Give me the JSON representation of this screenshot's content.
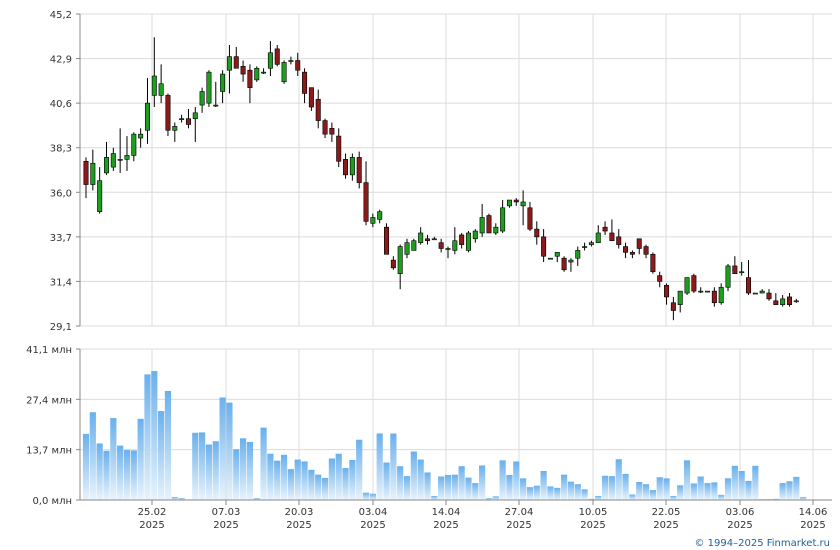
{
  "chart_data": [
    {
      "type": "candlestick",
      "ylim": [
        29.1,
        45.2
      ],
      "y_ticks": [
        "45,2",
        "42,9",
        "40,6",
        "38,3",
        "36,0",
        "33,7",
        "31,4",
        "29,1"
      ],
      "y_tick_values": [
        45.2,
        42.9,
        40.6,
        38.3,
        36.0,
        33.7,
        31.4,
        29.1
      ],
      "grid": true,
      "candles": [
        [
          37.6,
          36.4,
          37.8,
          35.7
        ],
        [
          36.4,
          37.5,
          38.2,
          36.1
        ],
        [
          35.0,
          36.6,
          37.3,
          34.9
        ],
        [
          37.0,
          37.8,
          38.6,
          36.9
        ],
        [
          37.3,
          38.0,
          38.3,
          37.1
        ],
        [
          37.7,
          37.7,
          39.3,
          37.0
        ],
        [
          37.7,
          37.9,
          38.9,
          37.1
        ],
        [
          37.9,
          39.0,
          39.1,
          37.6
        ],
        [
          38.8,
          39.0,
          39.3,
          38.3
        ],
        [
          39.2,
          40.6,
          41.9,
          38.5
        ],
        [
          41.0,
          42.0,
          44.0,
          40.4
        ],
        [
          41.0,
          41.6,
          42.6,
          40.6
        ],
        [
          41.0,
          39.2,
          41.1,
          38.9
        ],
        [
          39.2,
          39.4,
          39.6,
          38.6
        ],
        [
          39.8,
          39.8,
          40.0,
          39.6
        ],
        [
          39.8,
          39.5,
          40.3,
          39.3
        ],
        [
          39.8,
          40.1,
          40.4,
          38.6
        ],
        [
          40.5,
          41.2,
          41.4,
          40.1
        ],
        [
          40.6,
          42.2,
          42.3,
          40.4
        ],
        [
          40.5,
          40.5,
          41.7,
          40.4
        ],
        [
          41.2,
          42.1,
          42.3,
          40.6
        ],
        [
          42.3,
          43.0,
          43.6,
          41.1
        ],
        [
          43.0,
          42.4,
          43.5,
          42.4
        ],
        [
          42.5,
          42.1,
          42.8,
          41.7
        ],
        [
          42.3,
          41.4,
          42.6,
          40.6
        ],
        [
          41.8,
          42.4,
          42.5,
          41.7
        ],
        [
          42.2,
          42.2,
          42.4,
          42.1
        ],
        [
          42.4,
          43.2,
          43.8,
          42.0
        ],
        [
          43.4,
          42.6,
          43.6,
          42.5
        ],
        [
          41.7,
          42.7,
          42.8,
          41.6
        ],
        [
          42.8,
          42.8,
          43.0,
          42.6
        ],
        [
          42.8,
          42.3,
          43.2,
          42.0
        ],
        [
          42.2,
          41.1,
          42.4,
          40.6
        ],
        [
          41.4,
          40.4,
          41.4,
          40.2
        ],
        [
          40.8,
          39.7,
          41.3,
          39.3
        ],
        [
          39.7,
          39.0,
          39.8,
          38.8
        ],
        [
          39.3,
          39.0,
          39.6,
          38.6
        ],
        [
          38.9,
          37.6,
          39.3,
          37.3
        ],
        [
          37.7,
          36.9,
          38.0,
          36.7
        ],
        [
          36.9,
          37.8,
          38.0,
          36.6
        ],
        [
          37.8,
          36.5,
          38.1,
          36.2
        ],
        [
          36.5,
          34.5,
          37.6,
          34.3
        ],
        [
          34.4,
          34.7,
          34.9,
          34.2
        ],
        [
          34.6,
          35.0,
          35.1,
          34.4
        ],
        [
          34.2,
          32.8,
          34.4,
          32.8
        ],
        [
          32.5,
          32.1,
          32.7,
          32.0
        ],
        [
          31.8,
          33.2,
          33.3,
          31.0
        ],
        [
          32.8,
          33.4,
          33.6,
          32.6
        ],
        [
          33.0,
          33.5,
          33.6,
          33.0
        ],
        [
          33.4,
          33.9,
          34.2,
          33.3
        ],
        [
          33.6,
          33.5,
          33.8,
          33.3
        ],
        [
          33.6,
          33.6,
          33.7,
          33.6
        ],
        [
          33.4,
          33.1,
          33.6,
          32.9
        ],
        [
          33.1,
          33.1,
          33.2,
          32.6
        ],
        [
          33.0,
          33.5,
          34.2,
          32.8
        ],
        [
          33.8,
          33.3,
          33.9,
          33.1
        ],
        [
          33.0,
          33.9,
          34.0,
          32.9
        ],
        [
          33.6,
          34.0,
          34.1,
          33.4
        ],
        [
          33.9,
          34.7,
          35.4,
          33.7
        ],
        [
          34.8,
          33.9,
          34.9,
          33.9
        ],
        [
          33.9,
          34.2,
          34.4,
          33.8
        ],
        [
          34.0,
          35.2,
          35.6,
          33.9
        ],
        [
          35.3,
          35.6,
          35.6,
          35.2
        ],
        [
          35.6,
          35.5,
          35.7,
          35.3
        ],
        [
          35.3,
          35.5,
          36.1,
          34.3
        ],
        [
          35.2,
          34.1,
          35.5,
          34.0
        ],
        [
          34.1,
          33.7,
          34.5,
          33.3
        ],
        [
          33.7,
          32.7,
          34.1,
          32.4
        ],
        [
          32.6,
          32.6,
          32.6,
          32.6
        ],
        [
          32.7,
          32.9,
          32.9,
          32.4
        ],
        [
          32.6,
          32.0,
          32.7,
          31.9
        ],
        [
          32.4,
          32.5,
          32.6,
          31.9
        ],
        [
          32.6,
          33.0,
          33.2,
          32.2
        ],
        [
          33.2,
          33.2,
          33.4,
          33.0
        ],
        [
          33.3,
          33.4,
          33.5,
          33.2
        ],
        [
          33.4,
          33.9,
          34.3,
          33.4
        ],
        [
          34.2,
          34.0,
          34.5,
          33.8
        ],
        [
          33.9,
          33.5,
          34.6,
          33.5
        ],
        [
          33.7,
          33.3,
          34.1,
          33.1
        ],
        [
          33.2,
          32.9,
          33.4,
          32.6
        ],
        [
          32.9,
          32.8,
          33.0,
          32.6
        ],
        [
          33.6,
          33.1,
          33.6,
          32.8
        ],
        [
          33.2,
          32.8,
          33.3,
          32.6
        ],
        [
          32.8,
          31.9,
          32.9,
          31.8
        ],
        [
          31.7,
          31.4,
          31.9,
          31.1
        ],
        [
          31.2,
          30.6,
          31.3,
          30.2
        ],
        [
          30.3,
          29.9,
          30.6,
          29.4
        ],
        [
          30.2,
          30.9,
          30.9,
          29.8
        ],
        [
          30.8,
          31.6,
          31.6,
          30.7
        ],
        [
          31.7,
          30.9,
          31.8,
          30.8
        ],
        [
          30.9,
          30.9,
          31.1,
          30.8
        ],
        [
          30.9,
          30.9,
          30.9,
          30.9
        ],
        [
          30.9,
          30.3,
          31.1,
          30.1
        ],
        [
          30.3,
          31.1,
          31.3,
          30.2
        ],
        [
          31.1,
          32.2,
          32.3,
          30.9
        ],
        [
          32.2,
          31.8,
          32.7,
          31.8
        ],
        [
          31.9,
          31.9,
          32.4,
          31.7
        ],
        [
          31.6,
          30.8,
          32.5,
          30.7
        ],
        [
          30.8,
          30.8,
          30.8,
          30.8
        ],
        [
          30.8,
          30.9,
          31.0,
          30.8
        ],
        [
          30.8,
          30.5,
          31.0,
          30.4
        ],
        [
          30.4,
          30.2,
          30.8,
          30.2
        ],
        [
          30.2,
          30.5,
          30.7,
          30.1
        ],
        [
          30.6,
          30.2,
          30.8,
          30.1
        ],
        [
          30.4,
          30.4,
          30.5,
          30.3
        ]
      ]
    },
    {
      "type": "bar",
      "ylim": [
        0,
        41.1
      ],
      "y_ticks": [
        "41,1 млн",
        "27,4 млн",
        "13,7 млн",
        "0,0 млн"
      ],
      "y_tick_values": [
        41.1,
        27.4,
        13.7,
        0.0
      ],
      "grid": true,
      "values": [
        18.0,
        23.9,
        15.4,
        13.4,
        22.3,
        14.8,
        13.6,
        13.5,
        22.1,
        34.2,
        35.1,
        24.2,
        29.7,
        0.8,
        0.5,
        0.0,
        18.3,
        18.4,
        15.1,
        16.0,
        27.9,
        26.5,
        13.8,
        16.8,
        15.8,
        0.5,
        19.7,
        12.6,
        10.7,
        12.3,
        8.4,
        11.0,
        10.5,
        8.2,
        6.9,
        6.0,
        11.3,
        12.6,
        8.7,
        10.9,
        16.4,
        2.0,
        1.7,
        18.1,
        10.2,
        18.1,
        9.2,
        6.5,
        13.2,
        11.0,
        7.5,
        1.1,
        6.4,
        6.8,
        6.9,
        9.2,
        6.1,
        4.6,
        9.4,
        0.5,
        1.0,
        10.8,
        6.8,
        10.5,
        5.9,
        3.5,
        3.9,
        7.9,
        3.7,
        3.3,
        6.9,
        5.0,
        4.3,
        2.9,
        0.3,
        1.1,
        6.6,
        6.5,
        11.1,
        7.1,
        1.5,
        4.9,
        4.3,
        2.7,
        6.2,
        5.9,
        1.1,
        4.0,
        10.8,
        4.5,
        6.4,
        4.6,
        4.8,
        1.4,
        5.9,
        9.3,
        7.9,
        5.2,
        9.3,
        0.2,
        0.2,
        0.3,
        4.6,
        5.1,
        6.3,
        0.8
      ]
    }
  ],
  "x_ticks": [
    {
      "day": "25.02",
      "year": "2025"
    },
    {
      "day": "07.03",
      "year": "2025"
    },
    {
      "day": "20.03",
      "year": "2025"
    },
    {
      "day": "03.04",
      "year": "2025"
    },
    {
      "day": "14.04",
      "year": "2025"
    },
    {
      "day": "27.04",
      "year": "2025"
    },
    {
      "day": "10.05",
      "year": "2025"
    },
    {
      "day": "22.05",
      "year": "2025"
    },
    {
      "day": "03.06",
      "year": "2025"
    },
    {
      "day": "14.06",
      "year": "2025"
    }
  ],
  "credit": "© 1994–2025 Finmarket.ru",
  "colors": {
    "up": "#1e9e1e",
    "down": "#8b1a1a",
    "wick": "#000000",
    "volume_top": "#6ab0ec",
    "volume_bottom": "#e8f3fc",
    "grid": "#dcdcdc",
    "axis": "#888888",
    "credit": "#1f5f9a"
  }
}
